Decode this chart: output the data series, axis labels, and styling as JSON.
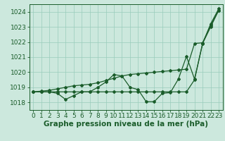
{
  "background_color": "#cce8dd",
  "plot_bg_color": "#cce8dd",
  "grid_color": "#99ccbb",
  "line_color": "#1a5c2a",
  "xlabel": "Graphe pression niveau de la mer (hPa)",
  "xlabel_fontsize": 7.5,
  "tick_fontsize": 6.5,
  "ylim": [
    1017.5,
    1024.5
  ],
  "xlim": [
    -0.5,
    23.5
  ],
  "yticks": [
    1018,
    1019,
    1020,
    1021,
    1022,
    1023,
    1024
  ],
  "xticks": [
    0,
    1,
    2,
    3,
    4,
    5,
    6,
    7,
    8,
    9,
    10,
    11,
    12,
    13,
    14,
    15,
    16,
    17,
    18,
    19,
    20,
    21,
    22,
    23
  ],
  "line1_x": [
    0,
    1,
    2,
    3,
    4,
    5,
    6,
    7,
    8,
    9,
    10,
    11,
    12,
    13,
    14,
    15,
    16,
    17,
    18,
    19,
    20,
    21,
    22,
    23
  ],
  "line1_y": [
    1018.7,
    1018.7,
    1018.7,
    1018.7,
    1018.7,
    1018.7,
    1018.7,
    1018.7,
    1018.7,
    1018.7,
    1018.7,
    1018.7,
    1018.7,
    1018.7,
    1018.7,
    1018.7,
    1018.7,
    1018.7,
    1018.7,
    1018.7,
    1019.5,
    1021.9,
    1023.0,
    1024.1
  ],
  "line2_x": [
    0,
    1,
    2,
    3,
    4,
    5,
    6,
    7,
    8,
    9,
    10,
    11,
    12,
    13,
    14,
    15,
    16,
    17,
    18,
    19,
    20,
    21,
    22,
    23
  ],
  "line2_y": [
    1018.7,
    1018.75,
    1018.8,
    1018.9,
    1019.0,
    1019.1,
    1019.15,
    1019.2,
    1019.3,
    1019.45,
    1019.6,
    1019.75,
    1019.85,
    1019.9,
    1019.95,
    1020.0,
    1020.05,
    1020.1,
    1020.15,
    1020.2,
    1021.9,
    1021.95,
    1023.1,
    1024.1
  ],
  "line3_x": [
    0,
    1,
    2,
    3,
    4,
    5,
    6,
    7,
    8,
    9,
    10,
    11,
    12,
    13,
    14,
    15,
    16,
    17,
    18,
    19,
    20,
    21,
    22,
    23
  ],
  "line3_y": [
    1018.7,
    1018.7,
    1018.7,
    1018.6,
    1018.2,
    1018.45,
    1018.7,
    1018.7,
    1019.0,
    1019.35,
    1019.85,
    1019.75,
    1019.0,
    1018.85,
    1018.05,
    1018.05,
    1018.6,
    1018.65,
    1019.55,
    1021.05,
    1019.55,
    1021.9,
    1023.2,
    1024.2
  ],
  "marker": "D",
  "marker_size": 2.0,
  "linewidth": 0.9
}
